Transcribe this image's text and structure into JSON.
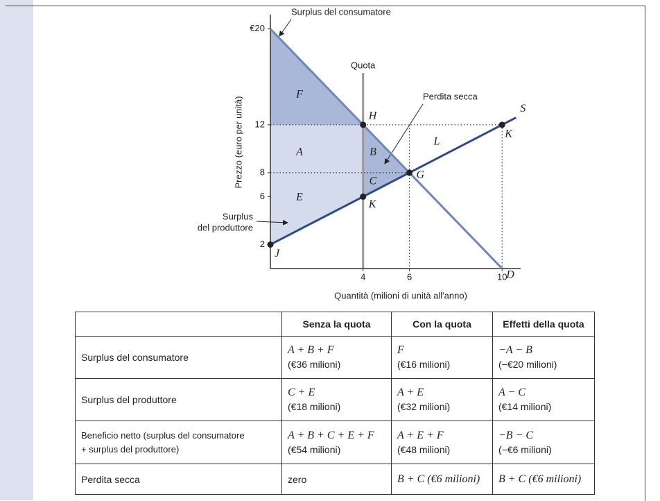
{
  "chart_data": {
    "type": "line",
    "y_label": "Prezzo (euro per unità)",
    "x_label": "Quantità (milioni di unità all'anno)",
    "xlim": [
      0,
      10.8
    ],
    "ylim": [
      0,
      21.2
    ],
    "xticks": [
      4,
      6,
      10
    ],
    "yticks": [
      {
        "value": 20,
        "label": "€20"
      },
      12,
      8,
      6,
      2
    ],
    "series": [
      {
        "name": "D",
        "color": "#6f86b8",
        "x": [
          0,
          10
        ],
        "values": [
          20,
          0
        ]
      },
      {
        "name": "S",
        "color": "#2f4a86",
        "x": [
          0,
          10.6
        ],
        "values": [
          2,
          12.6
        ]
      }
    ],
    "quota": {
      "label": "Quota",
      "x": 4
    },
    "points": [
      {
        "label": "H",
        "x": 4,
        "y": 12
      },
      {
        "label": "K",
        "x": 4,
        "y": 6
      },
      {
        "label": "G",
        "x": 6,
        "y": 8
      },
      {
        "label": "K",
        "x": 10,
        "y": 12
      },
      {
        "label": "J",
        "x": 0,
        "y": 2
      }
    ],
    "regions": [
      "F",
      "A",
      "B",
      "C",
      "E",
      "L"
    ],
    "annotations": {
      "consumer": "Surplus del consumatore",
      "deadweight": "Perdita secca",
      "producer": [
        "Surplus",
        "del produttore"
      ]
    }
  },
  "table": {
    "header": [
      "Senza la quota",
      "Con la quota",
      "Effetti della quota"
    ],
    "rows": [
      {
        "label": "Surplus del consumatore",
        "cells": [
          [
            "A + B + F",
            "(€36 milioni)"
          ],
          [
            "F",
            "(€16 milioni)"
          ],
          [
            "−A − B",
            "(−€20 milioni)"
          ]
        ]
      },
      {
        "label": "Surplus del produttore",
        "cells": [
          [
            "C + E",
            "(€18 milioni)"
          ],
          [
            "A + E",
            "(€32 milioni)"
          ],
          [
            "A − C",
            "(€14 milioni)"
          ]
        ]
      },
      {
        "label": [
          "Beneficio netto (surplus del consumatore",
          "+ surplus del produttore)"
        ],
        "cells": [
          [
            "A + B + C + E + F",
            "(€54 milioni)"
          ],
          [
            "A + E + F",
            "(€48 milioni)"
          ],
          [
            "−B − C",
            "(−€6 milioni)"
          ]
        ]
      },
      {
        "label": "Perdita secca",
        "cells": [
          [
            "zero"
          ],
          [
            "B + C (€6 milioni)"
          ],
          [
            "B + C (€6 milioni)"
          ]
        ]
      }
    ]
  }
}
